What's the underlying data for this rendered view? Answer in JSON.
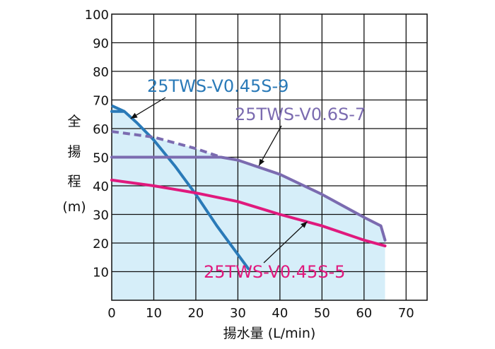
{
  "chart_data": {
    "type": "line",
    "xlabel": "揚水量 (L/min)",
    "ylabel_chars": [
      "全",
      "揚",
      "程",
      "(m)"
    ],
    "xlim": [
      0,
      75
    ],
    "ylim": [
      0,
      100
    ],
    "x_ticks": [
      0,
      10,
      20,
      30,
      40,
      50,
      60,
      70
    ],
    "y_ticks": [
      10,
      20,
      30,
      40,
      50,
      60,
      70,
      80,
      90,
      100
    ],
    "grid": true,
    "shaded_region_color": "#d6eef9",
    "series": [
      {
        "name": "25TWS-V0.45S-9",
        "color": "#2a7ab8",
        "points": [
          [
            0,
            66
          ],
          [
            3,
            66
          ],
          [
            6,
            62
          ],
          [
            10,
            56
          ],
          [
            15,
            47
          ],
          [
            20,
            37
          ],
          [
            25,
            26
          ],
          [
            30,
            16
          ],
          [
            32.5,
            11
          ]
        ]
      },
      {
        "name": "25TWS-V0.6S-7",
        "color": "#7b6bb0",
        "dashed_points": [
          [
            0,
            59
          ],
          [
            10,
            57
          ],
          [
            20,
            53
          ],
          [
            26,
            50
          ]
        ],
        "points": [
          [
            0,
            50
          ],
          [
            26,
            50
          ],
          [
            30,
            49
          ],
          [
            40,
            44
          ],
          [
            50,
            37
          ],
          [
            60,
            29
          ],
          [
            64,
            26
          ],
          [
            65,
            21
          ]
        ]
      },
      {
        "name": "25TWS-V0.45S-5",
        "color": "#e0197d",
        "points": [
          [
            0,
            42
          ],
          [
            10,
            40
          ],
          [
            20,
            37.5
          ],
          [
            30,
            34.5
          ],
          [
            40,
            30
          ],
          [
            50,
            26
          ],
          [
            60,
            21
          ],
          [
            65,
            19
          ]
        ]
      }
    ],
    "extra_line": {
      "color": "#2a7ab8",
      "dashed": false,
      "points": [
        [
          0,
          68
        ],
        [
          3,
          66
        ]
      ]
    },
    "labels": [
      {
        "series": "25TWS-V0.45S-9",
        "text": "25TWS-V0.45S-9",
        "color": "#2a7ab8",
        "anchor": [
          4.5,
          63.5
        ]
      },
      {
        "series": "25TWS-V0.6S-7",
        "text": "25TWS-V0.6S-7",
        "color": "#7b6bb0",
        "anchor": [
          35,
          47
        ]
      },
      {
        "series": "25TWS-V0.45S-5",
        "text": "25TWS-V0.45S-5",
        "color": "#e0197d",
        "anchor": [
          46.5,
          27.5
        ]
      }
    ]
  }
}
